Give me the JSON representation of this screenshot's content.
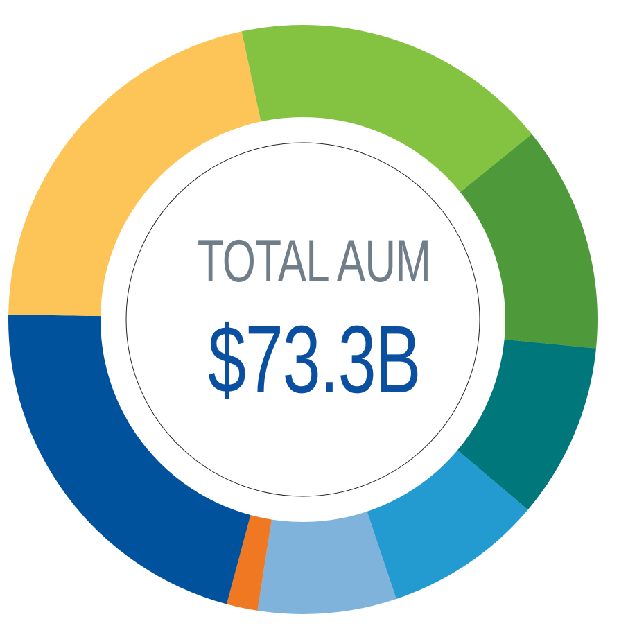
{
  "center": {
    "label": "TOTAL AUM",
    "value": "$73.3B"
  },
  "chart_data": {
    "type": "pie",
    "title": "",
    "slices": [
      {
        "value": 17.5,
        "color": "#84c341"
      },
      {
        "value": 12.4,
        "color": "#4e9a3a"
      },
      {
        "value": 9.6,
        "color": "#00777a"
      },
      {
        "value": 8.7,
        "color": "#239bd1"
      },
      {
        "value": 7.6,
        "color": "#7fb3dc"
      },
      {
        "value": 1.7,
        "color": "#f07822"
      },
      {
        "value": 21.1,
        "color": "#00529c"
      },
      {
        "value": 21.4,
        "color": "#fdc557"
      }
    ]
  }
}
